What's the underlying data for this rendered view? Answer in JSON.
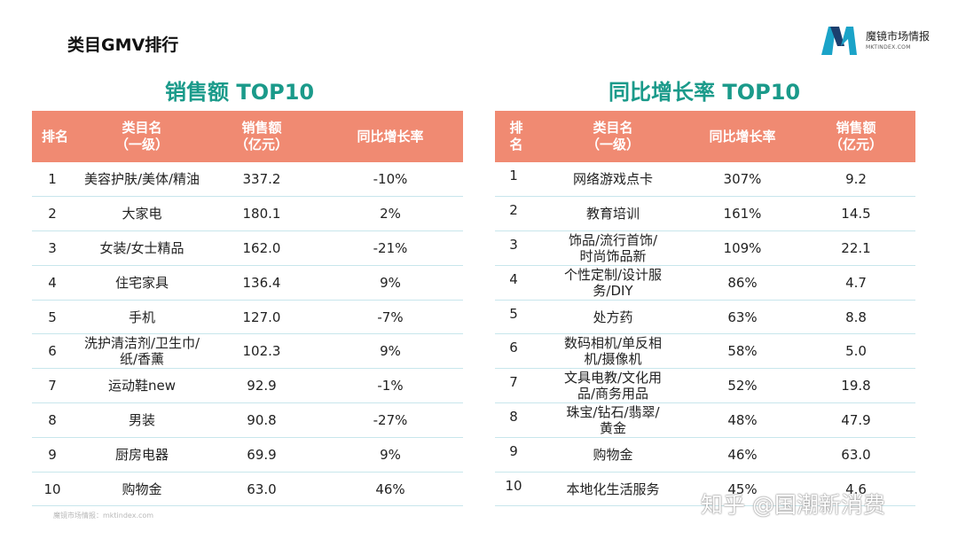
{
  "page": {
    "title": "类目GMV排行"
  },
  "logo": {
    "name": "魔镜市场情报",
    "sub": "MKTINDEX.COM",
    "colors": [
      "#1aa3c8",
      "#1c3f6e"
    ]
  },
  "left": {
    "title": "销售额 TOP10",
    "headers": {
      "rank": "排名",
      "category": "类目名\n（一级）",
      "sales": "销售额\n（亿元）",
      "growth": "同比增长率"
    },
    "rows": [
      {
        "rank": "1",
        "category": "美容护肤/美体/精油",
        "sales": "337.2",
        "growth": "-10%"
      },
      {
        "rank": "2",
        "category": "大家电",
        "sales": "180.1",
        "growth": "2%"
      },
      {
        "rank": "3",
        "category": "女装/女士精品",
        "sales": "162.0",
        "growth": "-21%"
      },
      {
        "rank": "4",
        "category": "住宅家具",
        "sales": "136.4",
        "growth": "9%"
      },
      {
        "rank": "5",
        "category": "手机",
        "sales": "127.0",
        "growth": "-7%"
      },
      {
        "rank": "6",
        "category": "洗护清洁剂/卫生巾/\n纸/香薰",
        "sales": "102.3",
        "growth": "9%"
      },
      {
        "rank": "7",
        "category": "运动鞋new",
        "sales": "92.9",
        "growth": "-1%"
      },
      {
        "rank": "8",
        "category": "男装",
        "sales": "90.8",
        "growth": "-27%"
      },
      {
        "rank": "9",
        "category": "厨房电器",
        "sales": "69.9",
        "growth": "9%"
      },
      {
        "rank": "10",
        "category": "购物金",
        "sales": "63.0",
        "growth": "46%"
      }
    ]
  },
  "right": {
    "title": "同比增长率 TOP10",
    "headers": {
      "rank": "排\n名",
      "category": "类目名\n（一级）",
      "growth": "同比增长率",
      "sales": "销售额\n（亿元）"
    },
    "rows": [
      {
        "rank": "1",
        "category": "网络游戏点卡",
        "growth": "307%",
        "sales": "9.2"
      },
      {
        "rank": "2",
        "category": "教育培训",
        "growth": "161%",
        "sales": "14.5"
      },
      {
        "rank": "3",
        "category": "饰品/流行首饰/\n时尚饰品新",
        "growth": "109%",
        "sales": "22.1"
      },
      {
        "rank": "4",
        "category": "个性定制/设计服\n务/DIY",
        "growth": "86%",
        "sales": "4.7"
      },
      {
        "rank": "5",
        "category": "处方药",
        "growth": "63%",
        "sales": "8.8"
      },
      {
        "rank": "6",
        "category": "数码相机/单反相\n机/摄像机",
        "growth": "58%",
        "sales": "5.0"
      },
      {
        "rank": "7",
        "category": "文具电教/文化用\n品/商务用品",
        "growth": "52%",
        "sales": "19.8"
      },
      {
        "rank": "8",
        "category": "珠宝/钻石/翡翠/\n黄金",
        "growth": "48%",
        "sales": "47.9"
      },
      {
        "rank": "9",
        "category": "购物金",
        "growth": "46%",
        "sales": "63.0"
      },
      {
        "rank": "10",
        "category": "本地化生活服务",
        "growth": "45%",
        "sales": "4.6"
      }
    ]
  },
  "source": "魔镜市场情报：mktindex.com",
  "watermark": "知乎 @国潮新消费",
  "colors": {
    "header_bg": "#f08a72",
    "title": "#1a9a8a",
    "row_divider": "#c8e6ec"
  }
}
